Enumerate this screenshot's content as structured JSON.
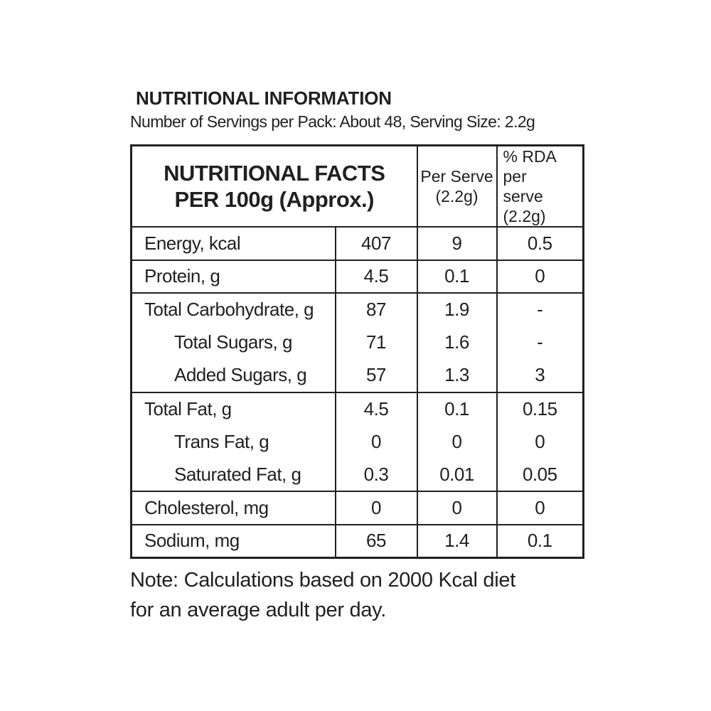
{
  "colors": {
    "text": "#231f20",
    "border": "#231f20",
    "background": "#ffffff"
  },
  "title": "NUTRITIONAL INFORMATION",
  "subtitle": "Number of Servings per Pack: About 48, Serving Size: 2.2g",
  "table": {
    "header": {
      "main_line1": "NUTRITIONAL FACTS",
      "main_line2": "PER 100g (Approx.)",
      "per_serve_line1": "Per Serve",
      "per_serve_line2": "(2.2g)",
      "rda_line1": "% RDA per",
      "rda_line2": "serve (2.2g)"
    },
    "rows": [
      {
        "label": "Energy, kcal",
        "per_100g": "407",
        "per_serve": "9",
        "rda_per_serve": "0.5",
        "indent": false,
        "rule_below": true
      },
      {
        "label": "Protein, g",
        "per_100g": "4.5",
        "per_serve": "0.1",
        "rda_per_serve": "0",
        "indent": false,
        "rule_below": true
      },
      {
        "label": "Total Carbohydrate, g",
        "per_100g": "87",
        "per_serve": "1.9",
        "rda_per_serve": "-",
        "indent": false,
        "rule_below": false
      },
      {
        "label": "Total Sugars, g",
        "per_100g": "71",
        "per_serve": "1.6",
        "rda_per_serve": "-",
        "indent": true,
        "rule_below": false
      },
      {
        "label": "Added Sugars, g",
        "per_100g": "57",
        "per_serve": "1.3",
        "rda_per_serve": "3",
        "indent": true,
        "rule_below": true
      },
      {
        "label": "Total Fat, g",
        "per_100g": "4.5",
        "per_serve": "0.1",
        "rda_per_serve": "0.15",
        "indent": false,
        "rule_below": false
      },
      {
        "label": "Trans Fat, g",
        "per_100g": "0",
        "per_serve": "0",
        "rda_per_serve": "0",
        "indent": true,
        "rule_below": false
      },
      {
        "label": "Saturated Fat, g",
        "per_100g": "0.3",
        "per_serve": "0.01",
        "rda_per_serve": "0.05",
        "indent": true,
        "rule_below": true
      },
      {
        "label": "Cholesterol, mg",
        "per_100g": "0",
        "per_serve": "0",
        "rda_per_serve": "0",
        "indent": false,
        "rule_below": true
      },
      {
        "label": "Sodium, mg",
        "per_100g": "65",
        "per_serve": "1.4",
        "rda_per_serve": "0.1",
        "indent": false,
        "rule_below": false
      }
    ]
  },
  "note": {
    "line1": "Note: Calculations based on 2000 Kcal diet",
    "line2": "for an average adult per day."
  }
}
